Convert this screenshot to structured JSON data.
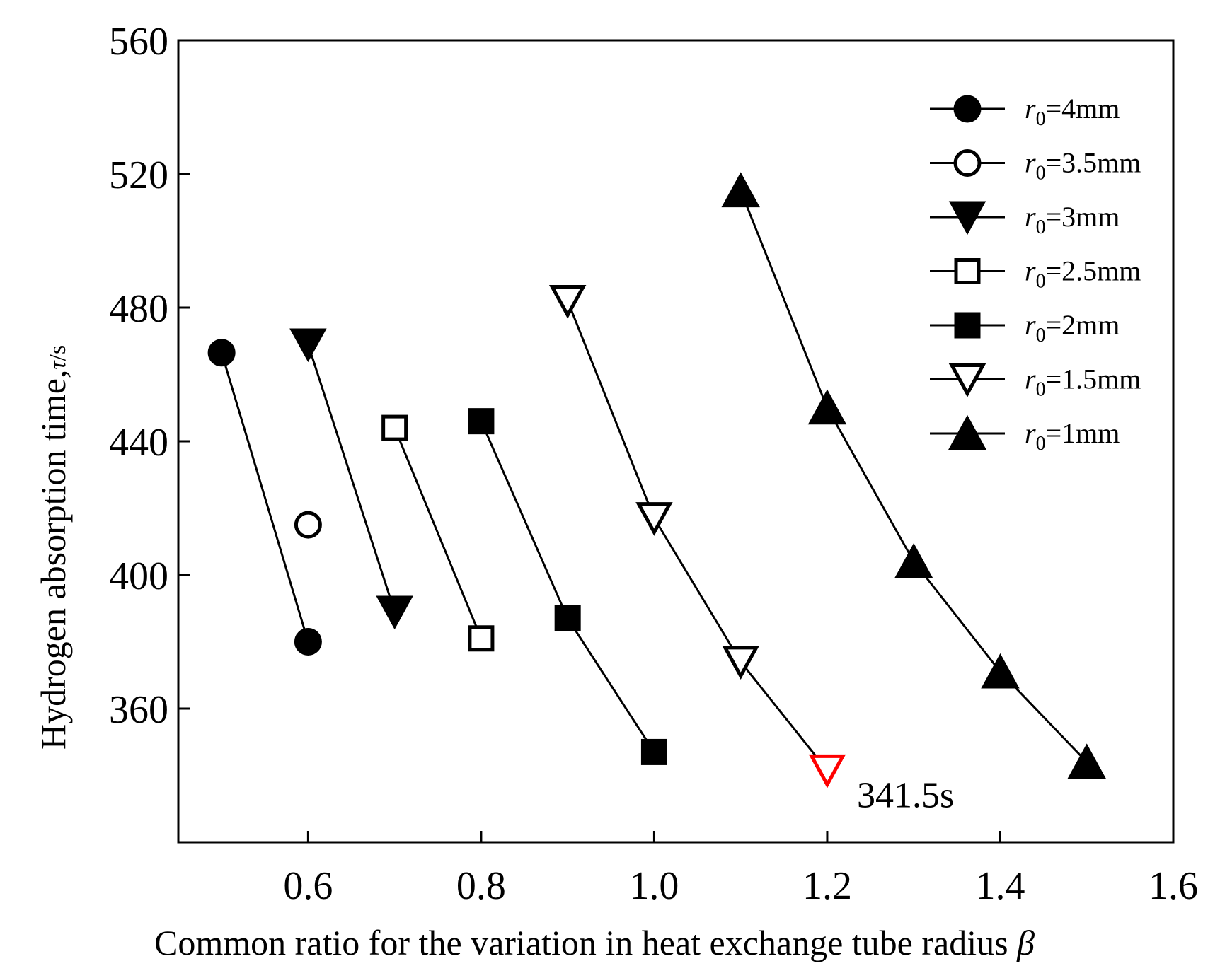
{
  "chart_data": {
    "type": "line",
    "title": "",
    "xlabel": "Common ratio for the variation in heat exchange tube radius ",
    "xlabel_symbol": "β",
    "ylabel": "Hydrogen absorption time,",
    "ylabel_unit_symbol": "τ",
    "ylabel_unit": "/s",
    "xlim": [
      0.45,
      1.6
    ],
    "ylim": [
      320,
      560
    ],
    "xticks": [
      0.6,
      0.8,
      1.0,
      1.2,
      1.4,
      1.6
    ],
    "xtick_labels": [
      "0.6",
      "0.8",
      "1.0",
      "1.2",
      "1.4",
      "1.6"
    ],
    "yticks": [
      360,
      400,
      440,
      480,
      520,
      560
    ],
    "ytick_labels": [
      "360",
      "400",
      "440",
      "480",
      "520",
      "560"
    ],
    "legend_position": "top-right",
    "series": [
      {
        "name": "=4mm",
        "legend_var": "r",
        "legend_sub": "0",
        "marker": "circle",
        "filled": true,
        "x": [
          0.5,
          0.6
        ],
        "y": [
          466.5,
          380
        ]
      },
      {
        "name": "=3.5mm",
        "legend_var": "r",
        "legend_sub": "0",
        "marker": "circle",
        "filled": false,
        "x": [
          0.6
        ],
        "y": [
          415
        ]
      },
      {
        "name": "=3mm",
        "legend_var": "r",
        "legend_sub": "0",
        "marker": "triangle-down",
        "filled": true,
        "x": [
          0.6,
          0.7
        ],
        "y": [
          469,
          389
        ]
      },
      {
        "name": "=2.5mm",
        "legend_var": "r",
        "legend_sub": "0",
        "marker": "square",
        "filled": false,
        "x": [
          0.7,
          0.8
        ],
        "y": [
          444,
          381
        ]
      },
      {
        "name": "=2mm",
        "legend_var": "r",
        "legend_sub": "0",
        "marker": "square",
        "filled": true,
        "x": [
          0.8,
          0.9,
          1.0
        ],
        "y": [
          446,
          387,
          347
        ]
      },
      {
        "name": "=1.5mm",
        "legend_var": "r",
        "legend_sub": "0",
        "marker": "triangle-down",
        "filled": false,
        "x": [
          0.9,
          1.0,
          1.1,
          1.2
        ],
        "y": [
          482,
          417,
          374,
          341.5
        ]
      },
      {
        "name": "=1mm",
        "legend_var": "r",
        "legend_sub": "0",
        "marker": "triangle-up",
        "filled": true,
        "x": [
          1.1,
          1.2,
          1.3,
          1.4,
          1.5
        ],
        "y": [
          515,
          450,
          404,
          371,
          344
        ]
      }
    ],
    "annotations": [
      {
        "text": "341.5s",
        "x": 1.2,
        "y": 341.5,
        "color": "#ff0000"
      }
    ]
  }
}
